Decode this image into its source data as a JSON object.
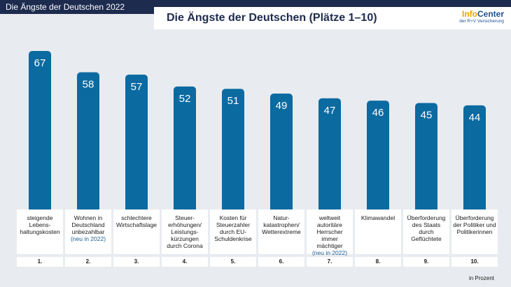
{
  "topbar": {
    "label": "Die Ängste der Deutschen 2022"
  },
  "header": {
    "title": "Die Ängste der Deutschen (Plätze 1–10)"
  },
  "logo": {
    "info": "Info",
    "center": "Center",
    "subtitle": "der R+V Versicherung"
  },
  "unit_label": "in Prozent",
  "colors": {
    "bar": "#0b6aa0",
    "accent": "#f59c00",
    "navy": "#1d2b4f"
  },
  "chart_data": {
    "type": "bar",
    "title": "Die Ängste der Deutschen (Plätze 1–10)",
    "ylabel": "in Prozent",
    "categories": [
      "steigende Lebens-haltungskosten",
      "Wohnen in Deutschland unbezahlbar (neu in 2022)",
      "schlechtere Wirtschaftslage",
      "Steuer-erhöhungen/ Leistungs-kürzungen durch Corona",
      "Kosten für Steuerzahler durch EU-Schuldenkrise",
      "Natur-katastrophen/ Wetterextreme",
      "weltweit autoritäre Herrscher immer mächtiger (neu in 2022)",
      "Klimawandel",
      "Überforderung des Staats durch Geflüchtete",
      "Überforderung der Politiker und Politikerinnen"
    ],
    "values": [
      67,
      58,
      57,
      52,
      51,
      49,
      47,
      46,
      45,
      44
    ],
    "ylim": [
      0,
      67
    ],
    "grid": false
  },
  "categories_display": [
    {
      "lines": [
        "steigende",
        "Lebens-",
        "haltungskosten"
      ],
      "note": ""
    },
    {
      "lines": [
        "Wohnen in",
        "Deutschland",
        "unbezahlbar"
      ],
      "note": "(neu in 2022)"
    },
    {
      "lines": [
        "schlechtere",
        "Wirtschaftslage"
      ],
      "note": ""
    },
    {
      "lines": [
        "Steuer-",
        "erhöhungen/",
        "Leistungs-",
        "kürzungen",
        "durch Corona"
      ],
      "note": ""
    },
    {
      "lines": [
        "Kosten für",
        "Steuerzahler",
        "durch EU-",
        "Schuldenkrise"
      ],
      "note": ""
    },
    {
      "lines": [
        "Natur-",
        "katastrophen/",
        "Wetterextreme"
      ],
      "note": ""
    },
    {
      "lines": [
        "weltweit",
        "autoritäre",
        "Herrscher",
        "immer",
        "mächtiger"
      ],
      "note": "(neu in 2022)"
    },
    {
      "lines": [
        "Klimawandel"
      ],
      "note": ""
    },
    {
      "lines": [
        "Überforderung",
        "des Staats",
        "durch",
        "Geflüchtete"
      ],
      "note": ""
    },
    {
      "lines": [
        "Überforderung",
        "der Politiker und",
        "Politikerinnen"
      ],
      "note": ""
    }
  ],
  "ranks": [
    "1.",
    "2.",
    "3.",
    "4.",
    "5.",
    "6.",
    "7.",
    "8.",
    "9.",
    "10."
  ]
}
